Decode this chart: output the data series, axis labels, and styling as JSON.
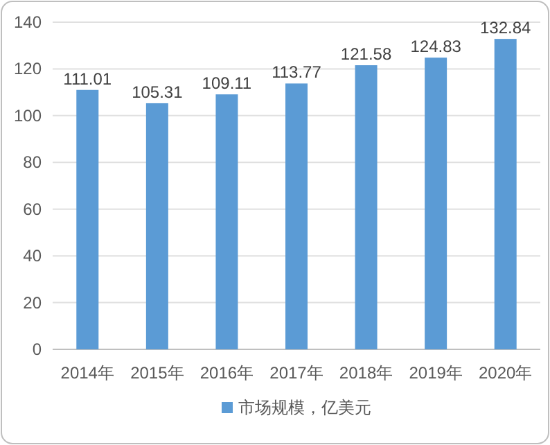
{
  "chart_data": {
    "type": "bar",
    "categories": [
      "2014年",
      "2015年",
      "2016年",
      "2017年",
      "2018年",
      "2019年",
      "2020年"
    ],
    "series": [
      {
        "name": "市场规模，亿美元",
        "color": "#5b9bd5",
        "values": [
          111.01,
          105.31,
          109.11,
          113.77,
          121.58,
          124.83,
          132.84
        ]
      }
    ],
    "ylim": [
      0,
      140
    ],
    "yticks": [
      0,
      20,
      40,
      60,
      80,
      100,
      120,
      140
    ],
    "data_labels": true,
    "grid": "y",
    "legend": "bottom"
  }
}
